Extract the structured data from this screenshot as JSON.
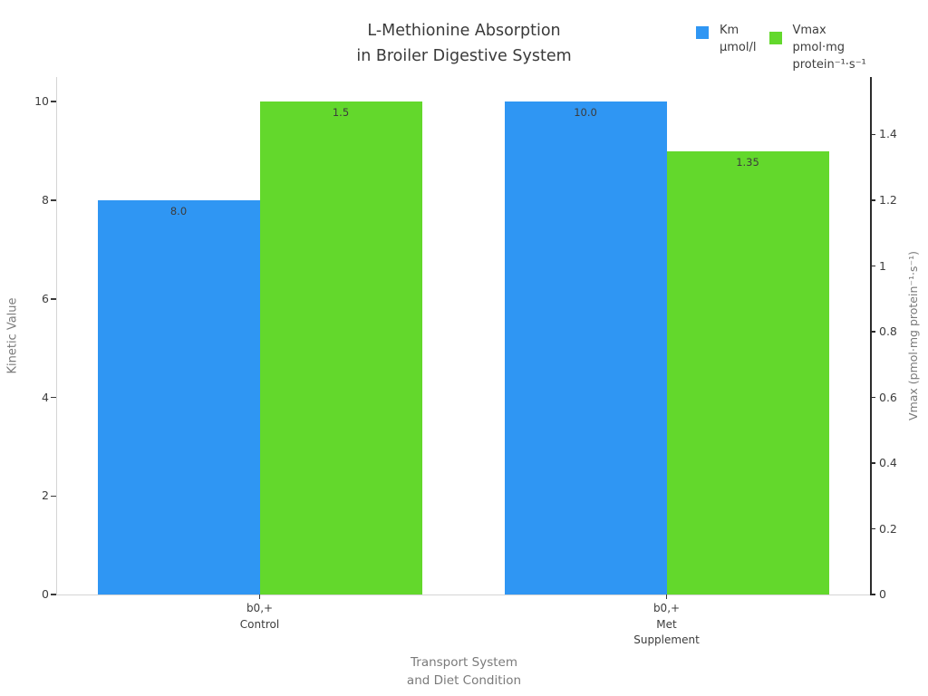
{
  "title": "L-Methionine Absorption\nin Broiler Digestive System",
  "legend": {
    "items": [
      {
        "name": "Km",
        "label": "Km\nμmol/l",
        "color": "#2f96f3"
      },
      {
        "name": "Vmax",
        "label": "Vmax\npmol·mg\nprotein⁻¹·s⁻¹",
        "color": "#63d82c"
      }
    ]
  },
  "chart_data": {
    "type": "bar",
    "title": "L-Methionine Absorption\nin Broiler Digestive System",
    "categories": [
      "b0,+\nControl",
      "b0,+\nMet\nSupplement"
    ],
    "series": [
      {
        "name": "Km",
        "unit": "μmol/l",
        "axis": "left",
        "color": "#2f96f3",
        "values": [
          8.0,
          10.0
        ],
        "labels": [
          "8.0",
          "10.0"
        ]
      },
      {
        "name": "Vmax",
        "unit": "pmol·mg protein⁻¹·s⁻¹",
        "axis": "right",
        "color": "#63d82c",
        "values": [
          1.5,
          1.35
        ],
        "labels": [
          "1.5",
          "1.35"
        ]
      }
    ],
    "xlabel": "Transport System\nand Diet Condition",
    "ylabel_left": "Kinetic Value",
    "ylabel_right": "Vmax (pmol·mg protein⁻¹·s⁻¹)",
    "ylim_left": [
      0,
      10.5
    ],
    "ylim_right": [
      0,
      1.575
    ],
    "yticks_left": [
      0,
      2,
      4,
      6,
      8,
      10
    ],
    "yticks_right": [
      0,
      0.2,
      0.4,
      0.6,
      0.8,
      1,
      1.2,
      1.4
    ],
    "grid": false,
    "legend_position": "top-right",
    "axis_colors": {
      "left_spine": "#d4d4d4",
      "bottom_spine": "#d4d4d4",
      "right_spine": "#2b2b2b"
    }
  }
}
